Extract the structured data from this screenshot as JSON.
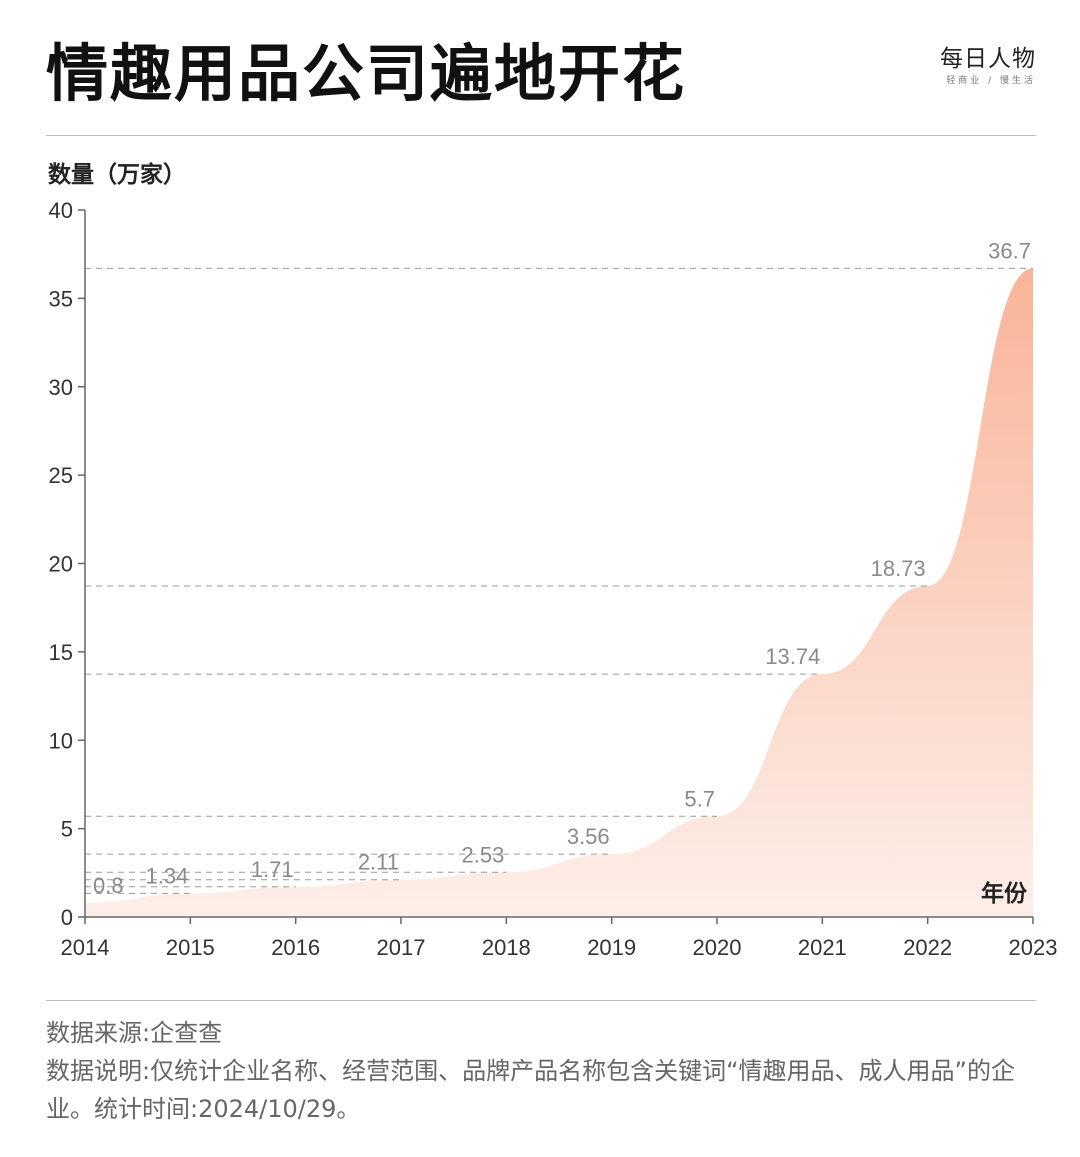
{
  "title": "情趣用品公司遍地开花",
  "brand": {
    "name": "每日人物",
    "sub": "轻商业 / 慢生活"
  },
  "chart_data": {
    "type": "area",
    "ylabel": "数量（万家）",
    "xlabel": "年份",
    "categories": [
      "2014",
      "2015",
      "2016",
      "2017",
      "2018",
      "2019",
      "2020",
      "2021",
      "2022",
      "2023"
    ],
    "values": [
      0.8,
      1.34,
      1.71,
      2.11,
      2.53,
      3.56,
      5.7,
      13.74,
      18.73,
      36.7
    ],
    "value_labels": [
      "0.8",
      "1.34",
      "1.71",
      "2.11",
      "2.53",
      "3.56",
      "5.7",
      "13.74",
      "18.73",
      "36.7"
    ],
    "ylim": [
      0,
      40
    ],
    "yticks": [
      "0",
      "5",
      "10",
      "15",
      "20",
      "25",
      "30",
      "35",
      "40"
    ],
    "grid": "dashed reference lines at each value",
    "colors": {
      "fill_top": "#f9b498",
      "fill_bottom": "#fdefe9",
      "guide": "#9a9a9a",
      "label": "#8a8a8a"
    }
  },
  "notes": {
    "source": "数据来源:企查查",
    "description": "数据说明:仅统计企业名称、经营范围、品牌产品名称包含关键词“情趣用品、成人用品”的企业。统计时间:2024/10/29。"
  }
}
